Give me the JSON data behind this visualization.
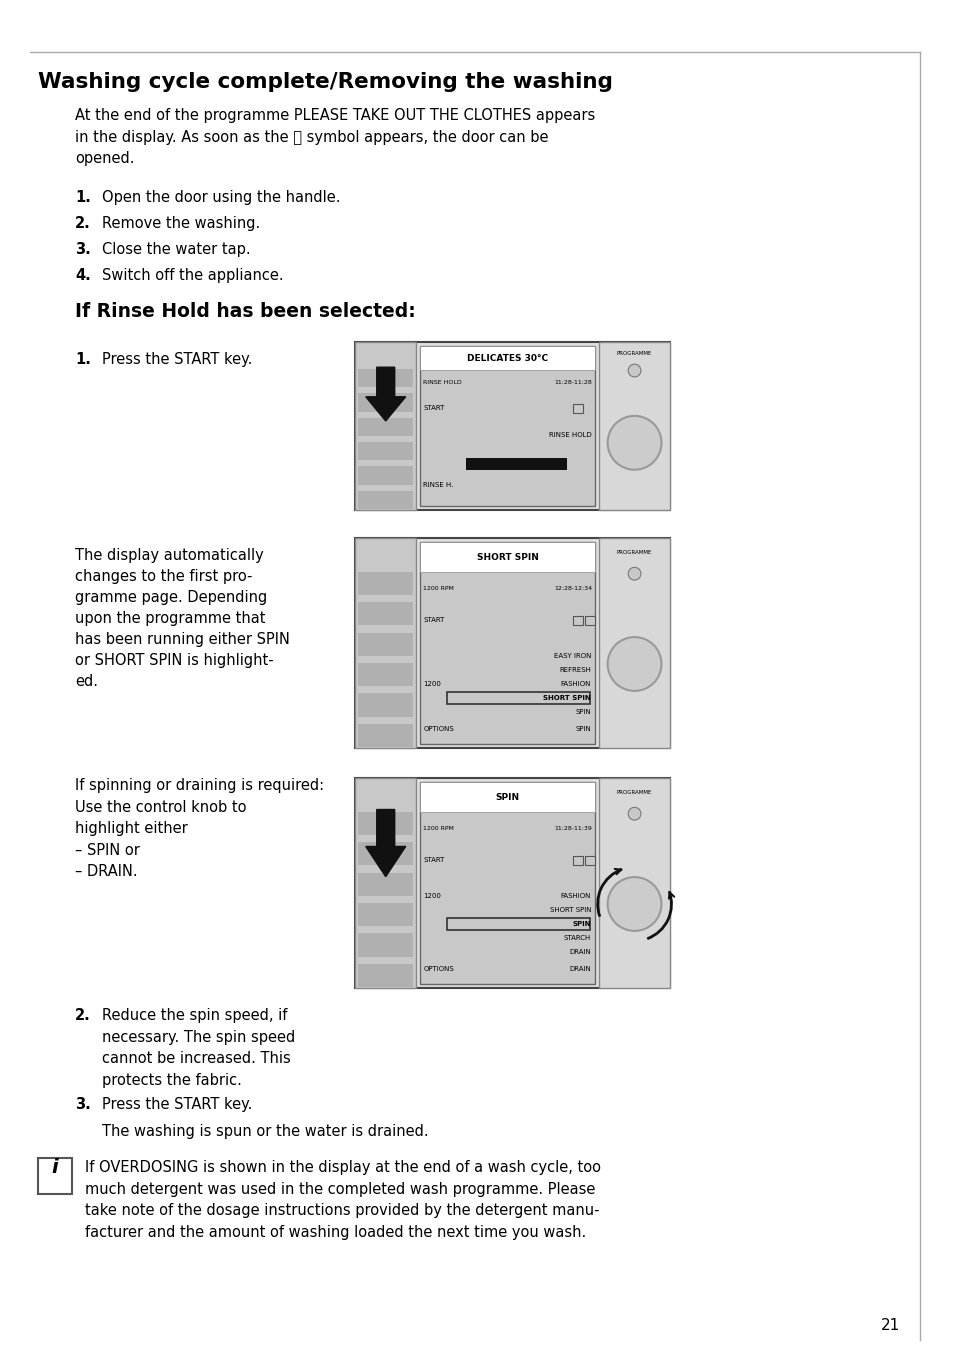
{
  "page_bg": "#ffffff",
  "title": "Washing cycle complete/Removing the washing",
  "subtitle": "If Rinse Hold has been selected:",
  "para1_line1": "At the end of the programme PLEASE TAKE OUT THE CLOTHES appears",
  "para1_line2": "in the display. As soon as the ⓘ symbol appears, the door can be",
  "para1_line3": "opened.",
  "items1": [
    {
      "num": "1.",
      "text": "Open the door using the handle."
    },
    {
      "num": "2.",
      "text": "Remove the washing."
    },
    {
      "num": "3.",
      "text": "Close the water tap."
    },
    {
      "num": "4.",
      "text": "Switch off the appliance."
    }
  ],
  "step1_label": "1.",
  "step1_text": "Press the START key.",
  "disp1_title": "DELICATES 30°C",
  "disp1_row1_left": "RINSE HOLD",
  "disp1_row1_right": "11:28-11:28",
  "disp1_start": "START",
  "disp1_rinse_hold": "RINSE HOLD",
  "disp1_rinse_h": "RINSE H.",
  "middle_text": "The display automatically\nchanges to the first pro-\ngramme page. Depending\nupon the programme that\nhas been running either SPIN\nor SHORT SPIN is highlight-\ned.",
  "disp2_title": "SHORT SPIN",
  "disp2_row1_left": "1200 RPM",
  "disp2_row1_right": "12:28-12:34",
  "disp2_start": "START",
  "disp2_items": [
    "EASY IRON",
    "REFRESH",
    "FASHION",
    "SHORT SPIN",
    "SPIN"
  ],
  "disp2_highlight": "SHORT SPIN",
  "disp2_options": "OPTIONS",
  "disp2_1200": "1200",
  "spin_text": "If spinning or draining is required:\nUse the control knob to\nhighlight either\n– SPIN or\n– DRAIN.",
  "disp3_title": "SPIN",
  "disp3_row1_left": "1200 RPM",
  "disp3_row1_right": "11:28-11:39",
  "disp3_start": "START",
  "disp3_items": [
    "FASHION",
    "SHORT SPIN",
    "SPIN",
    "STARCH",
    "DRAIN"
  ],
  "disp3_highlight": "SPIN",
  "disp3_options": "OPTIONS",
  "disp3_1200": "1200",
  "step2_label": "2.",
  "step2_text": "Reduce the spin speed, if\nnecessary. The spin speed\ncannot be increased. This\nprotects the fabric.",
  "step3_label": "3.",
  "step3_text": "Press the START key.",
  "after_step3": "The washing is spun or the water is drained.",
  "info_text": "If OVERDOSING is shown in the display at the end of a wash cycle, too\nmuch detergent was used in the completed wash programme. Please\ntake note of the dosage instructions provided by the detergent manu-\nfacturer and the amount of washing loaded the next time you wash.",
  "page_number": "21"
}
